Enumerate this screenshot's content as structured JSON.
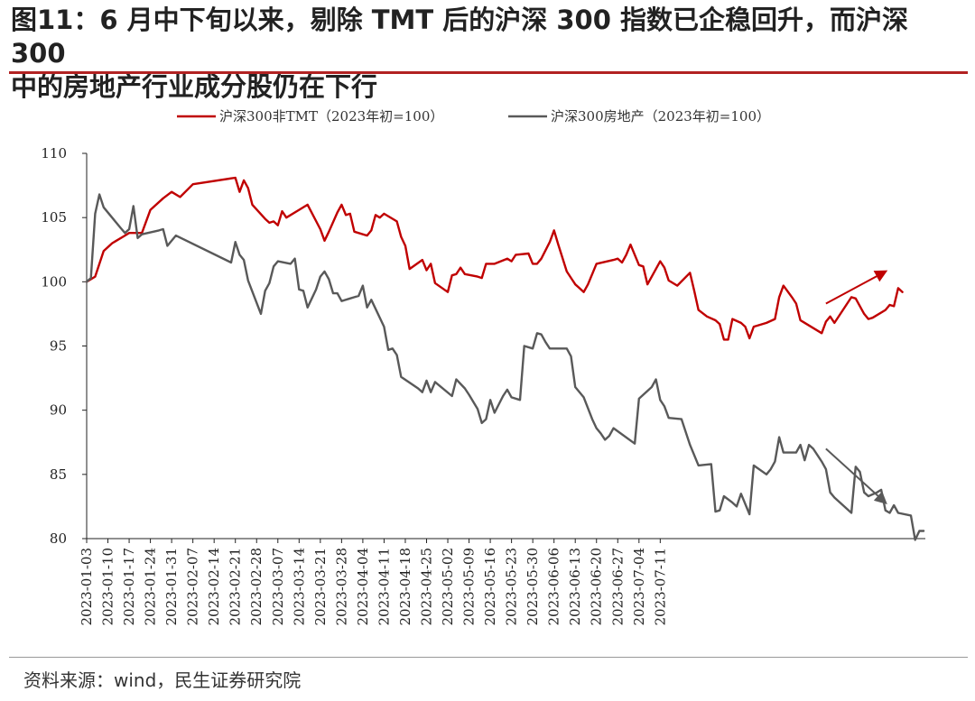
{
  "title": {
    "line1": "图11：6 月中下旬以来，剔除 TMT 后的沪深 300 指数已企稳回升，而沪深 300",
    "line2": "中的房地产行业成分股仍在下行"
  },
  "source": "资料来源：wind，民生证券研究院",
  "colors": {
    "accent": "#c00000",
    "series1": "#c00000",
    "series2": "#595959",
    "rule": "#b22222"
  },
  "chart_data": {
    "type": "line",
    "title": "",
    "xlabel": "",
    "ylabel": "",
    "ylim": [
      80,
      110
    ],
    "yticks": [
      80,
      85,
      90,
      95,
      100,
      105,
      110
    ],
    "xtick_labels": [
      "2023-01-03",
      "2023-01-10",
      "2023-01-17",
      "2023-01-24",
      "2023-01-31",
      "2023-02-07",
      "2023-02-14",
      "2023-02-21",
      "2023-02-28",
      "2023-03-07",
      "2023-03-14",
      "2023-03-21",
      "2023-03-28",
      "2023-04-04",
      "2023-04-11",
      "2023-04-18",
      "2023-04-25",
      "2023-05-02",
      "2023-05-09",
      "2023-05-16",
      "2023-05-23",
      "2023-05-30",
      "2023-06-06",
      "2023-06-13",
      "2023-06-20",
      "2023-06-27",
      "2023-07-04",
      "2023-07-11"
    ],
    "xlim": [
      0,
      194
    ],
    "legend_position": "top",
    "series": [
      {
        "name": "沪深300非TMT（2023年初=100）",
        "color": "#c00000",
        "points": [
          [
            0,
            100.0
          ],
          [
            2,
            100.4
          ],
          [
            4,
            102.4
          ],
          [
            6,
            103.0
          ],
          [
            9,
            103.6
          ],
          [
            10,
            103.8
          ],
          [
            13,
            103.8
          ],
          [
            15,
            105.6
          ],
          [
            18,
            106.5
          ],
          [
            20,
            107.0
          ],
          [
            22,
            106.6
          ],
          [
            25,
            107.6
          ],
          [
            35,
            108.1
          ],
          [
            36,
            107.0
          ],
          [
            37,
            107.9
          ],
          [
            38,
            107.3
          ],
          [
            39,
            106.0
          ],
          [
            42,
            104.9
          ],
          [
            43,
            104.6
          ],
          [
            44,
            104.7
          ],
          [
            45,
            104.4
          ],
          [
            46,
            105.5
          ],
          [
            47,
            105.0
          ],
          [
            50,
            105.6
          ],
          [
            52,
            106.0
          ],
          [
            55,
            104.1
          ],
          [
            56,
            103.2
          ],
          [
            57,
            103.9
          ],
          [
            59,
            105.4
          ],
          [
            60,
            106.0
          ],
          [
            61,
            105.2
          ],
          [
            62,
            105.3
          ],
          [
            63,
            103.9
          ],
          [
            66,
            103.6
          ],
          [
            67,
            104.0
          ],
          [
            68,
            105.2
          ],
          [
            69,
            105.0
          ],
          [
            70,
            105.3
          ],
          [
            73,
            104.7
          ],
          [
            74,
            103.5
          ],
          [
            75,
            102.8
          ],
          [
            76,
            101.0
          ],
          [
            79,
            101.7
          ],
          [
            80,
            100.9
          ],
          [
            81,
            101.4
          ],
          [
            82,
            99.9
          ],
          [
            85,
            99.2
          ],
          [
            86,
            100.5
          ],
          [
            87,
            100.6
          ],
          [
            88,
            101.1
          ],
          [
            89,
            100.6
          ],
          [
            92,
            100.4
          ],
          [
            93,
            100.3
          ],
          [
            94,
            101.4
          ],
          [
            96,
            101.4
          ],
          [
            99,
            101.8
          ],
          [
            100,
            101.6
          ],
          [
            101,
            102.1
          ],
          [
            104,
            102.2
          ],
          [
            105,
            101.4
          ],
          [
            106,
            101.4
          ],
          [
            107,
            101.8
          ],
          [
            109,
            103.1
          ],
          [
            110,
            104.0
          ],
          [
            111,
            102.9
          ],
          [
            113,
            100.8
          ],
          [
            115,
            99.8
          ],
          [
            116,
            99.5
          ],
          [
            117,
            99.2
          ],
          [
            118,
            99.8
          ],
          [
            120,
            101.4
          ],
          [
            124,
            101.7
          ],
          [
            125,
            101.8
          ],
          [
            126,
            101.5
          ],
          [
            127,
            102.1
          ],
          [
            128,
            102.9
          ],
          [
            130,
            101.3
          ],
          [
            131,
            101.2
          ],
          [
            132,
            99.8
          ],
          [
            135,
            101.6
          ],
          [
            136,
            101.1
          ],
          [
            137,
            100.1
          ],
          [
            139,
            99.7
          ],
          [
            142,
            100.7
          ],
          [
            143,
            99.3
          ],
          [
            144,
            97.8
          ],
          [
            146,
            97.3
          ],
          [
            148,
            97.0
          ],
          [
            149,
            96.7
          ],
          [
            150,
            95.5
          ],
          [
            151,
            95.5
          ],
          [
            152,
            97.1
          ],
          [
            154,
            96.8
          ],
          [
            155,
            96.5
          ],
          [
            156,
            95.6
          ],
          [
            157,
            96.5
          ],
          [
            160,
            96.8
          ],
          [
            162,
            97.1
          ],
          [
            163,
            98.8
          ],
          [
            164,
            99.7
          ],
          [
            166,
            98.8
          ],
          [
            167,
            98.3
          ],
          [
            168,
            97.0
          ],
          [
            173,
            96.0
          ],
          [
            174,
            96.9
          ],
          [
            175,
            97.3
          ],
          [
            176,
            96.8
          ],
          [
            180,
            98.8
          ],
          [
            181,
            98.7
          ],
          [
            183,
            97.5
          ],
          [
            184,
            97.1
          ],
          [
            185,
            97.2
          ],
          [
            188,
            97.8
          ],
          [
            189,
            98.2
          ],
          [
            190,
            98.1
          ],
          [
            191,
            99.5
          ],
          [
            192,
            99.2
          ]
        ]
      },
      {
        "name": "沪深300房地产（2023年初=100）",
        "color": "#595959",
        "points": [
          [
            0,
            100.0
          ],
          [
            1,
            100.3
          ],
          [
            2,
            105.3
          ],
          [
            3,
            106.8
          ],
          [
            4,
            105.8
          ],
          [
            8,
            104.2
          ],
          [
            9,
            103.8
          ],
          [
            10,
            104.1
          ],
          [
            11,
            105.9
          ],
          [
            12,
            103.4
          ],
          [
            13,
            103.7
          ],
          [
            17,
            104.0
          ],
          [
            18,
            104.1
          ],
          [
            19,
            102.8
          ],
          [
            21,
            103.6
          ],
          [
            34,
            101.5
          ],
          [
            35,
            103.1
          ],
          [
            36,
            102.1
          ],
          [
            37,
            101.7
          ],
          [
            38,
            100.1
          ],
          [
            41,
            97.5
          ],
          [
            42,
            99.3
          ],
          [
            43,
            99.9
          ],
          [
            44,
            101.2
          ],
          [
            45,
            101.6
          ],
          [
            48,
            101.4
          ],
          [
            49,
            101.8
          ],
          [
            50,
            99.4
          ],
          [
            51,
            99.3
          ],
          [
            52,
            98.0
          ],
          [
            54,
            99.4
          ],
          [
            55,
            100.4
          ],
          [
            56,
            100.8
          ],
          [
            57,
            100.2
          ],
          [
            58,
            99.1
          ],
          [
            59,
            99.1
          ],
          [
            60,
            98.5
          ],
          [
            62,
            98.7
          ],
          [
            63,
            98.8
          ],
          [
            64,
            98.9
          ],
          [
            65,
            99.7
          ],
          [
            66,
            98.0
          ],
          [
            67,
            98.6
          ],
          [
            70,
            96.5
          ],
          [
            71,
            94.7
          ],
          [
            72,
            94.8
          ],
          [
            73,
            94.3
          ],
          [
            74,
            92.6
          ],
          [
            78,
            91.7
          ],
          [
            79,
            91.4
          ],
          [
            80,
            92.3
          ],
          [
            81,
            91.4
          ],
          [
            82,
            92.2
          ],
          [
            86,
            91.1
          ],
          [
            87,
            92.4
          ],
          [
            89,
            91.7
          ],
          [
            90,
            91.2
          ],
          [
            92,
            90.1
          ],
          [
            93,
            89.0
          ],
          [
            94,
            89.3
          ],
          [
            95,
            90.8
          ],
          [
            96,
            89.8
          ],
          [
            98,
            91.1
          ],
          [
            99,
            91.6
          ],
          [
            100,
            91.0
          ],
          [
            102,
            90.8
          ],
          [
            103,
            95.0
          ],
          [
            105,
            94.8
          ],
          [
            106,
            96.0
          ],
          [
            107,
            95.9
          ],
          [
            108,
            95.3
          ],
          [
            109,
            94.8
          ],
          [
            113,
            94.8
          ],
          [
            114,
            94.2
          ],
          [
            115,
            91.8
          ],
          [
            117,
            91.0
          ],
          [
            119,
            89.3
          ],
          [
            120,
            88.6
          ],
          [
            121,
            88.2
          ],
          [
            122,
            87.7
          ],
          [
            123,
            88.0
          ],
          [
            124,
            88.6
          ],
          [
            129,
            87.4
          ],
          [
            130,
            90.9
          ],
          [
            133,
            91.8
          ],
          [
            134,
            92.4
          ],
          [
            135,
            90.8
          ],
          [
            136,
            90.3
          ],
          [
            137,
            89.4
          ],
          [
            140,
            89.3
          ],
          [
            141,
            88.3
          ],
          [
            142,
            87.3
          ],
          [
            144,
            85.7
          ],
          [
            147,
            85.8
          ],
          [
            148,
            82.1
          ],
          [
            149,
            82.2
          ],
          [
            150,
            83.3
          ],
          [
            152,
            82.8
          ],
          [
            153,
            82.5
          ],
          [
            154,
            83.5
          ],
          [
            156,
            81.9
          ],
          [
            157,
            85.7
          ],
          [
            160,
            85.0
          ],
          [
            161,
            85.4
          ],
          [
            162,
            86.0
          ],
          [
            163,
            87.9
          ],
          [
            164,
            86.7
          ],
          [
            166,
            86.7
          ],
          [
            167,
            86.7
          ],
          [
            168,
            87.3
          ],
          [
            169,
            86.1
          ],
          [
            170,
            87.3
          ],
          [
            171,
            87.0
          ],
          [
            173,
            86.0
          ],
          [
            174,
            85.4
          ],
          [
            175,
            83.6
          ],
          [
            176,
            83.2
          ],
          [
            180,
            82.0
          ],
          [
            181,
            85.6
          ],
          [
            182,
            85.2
          ],
          [
            183,
            83.6
          ],
          [
            184,
            83.3
          ],
          [
            186,
            83.6
          ],
          [
            187,
            83.8
          ],
          [
            188,
            82.2
          ],
          [
            189,
            82.0
          ],
          [
            190,
            82.6
          ],
          [
            191,
            82.0
          ],
          [
            194,
            81.8
          ],
          [
            195,
            79.9
          ],
          [
            196,
            80.6
          ],
          [
            197,
            80.6
          ]
        ]
      }
    ],
    "annotations": [
      {
        "type": "arrow",
        "direction": "up-right",
        "color": "#c00000",
        "from": [
          174,
          98.3
        ],
        "to": [
          188,
          100.8
        ]
      },
      {
        "type": "arrow",
        "direction": "down-right",
        "color": "#595959",
        "from": [
          174,
          87.0
        ],
        "to": [
          188,
          82.8
        ]
      }
    ]
  }
}
